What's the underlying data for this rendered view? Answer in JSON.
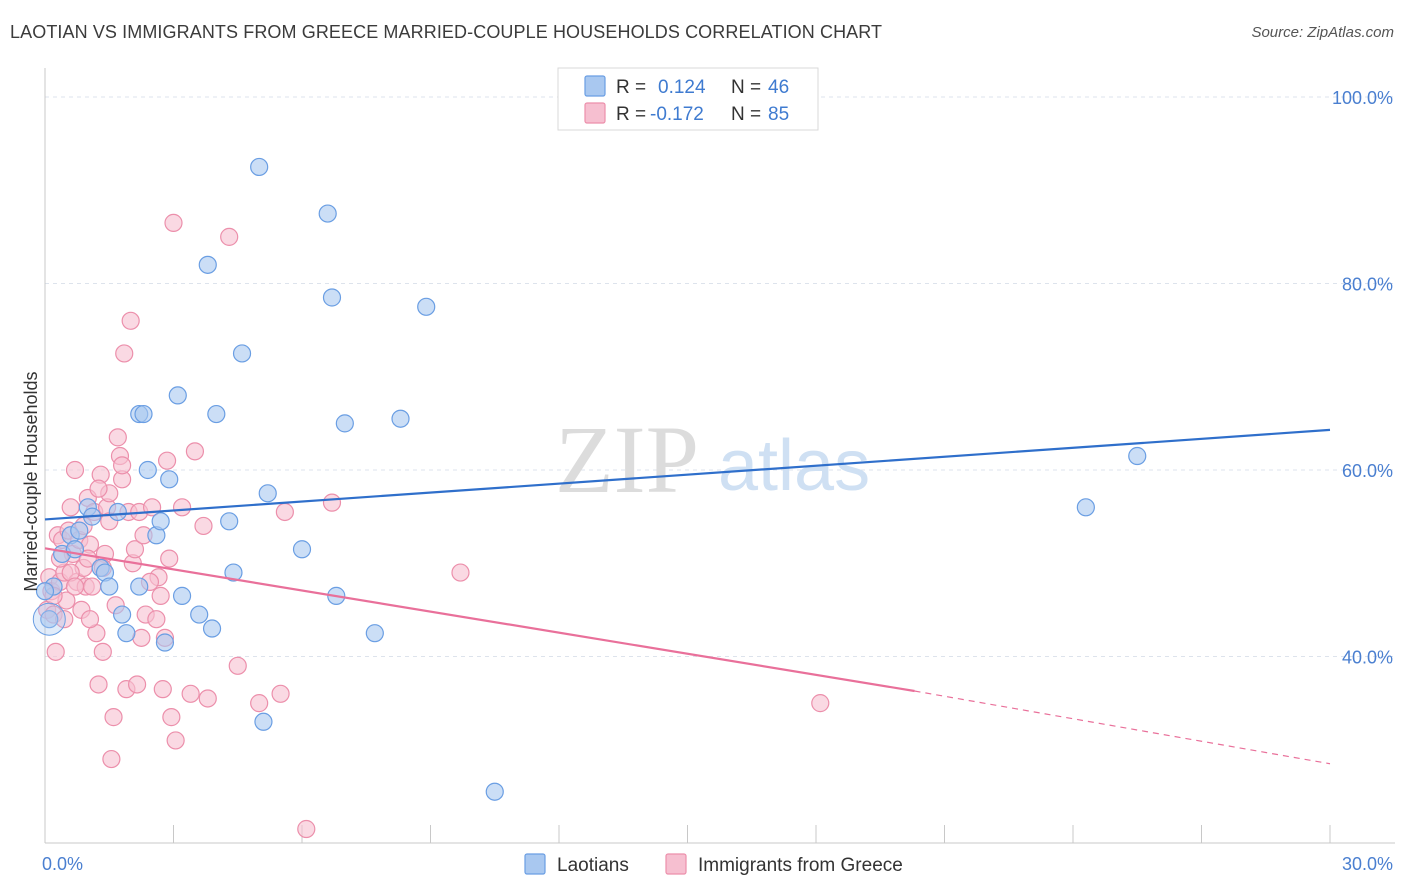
{
  "title": "LAOTIAN VS IMMIGRANTS FROM GREECE MARRIED-COUPLE HOUSEHOLDS CORRELATION CHART",
  "source": "Source: ZipAtlas.com",
  "watermark": {
    "zip": "ZIP",
    "atlas": "atlas"
  },
  "colors": {
    "blue_fill": "#a9c8f0",
    "blue_stroke": "#6a9ee3",
    "blue_line": "#2f6fcb",
    "pink_fill": "#f6bfd0",
    "pink_stroke": "#ec8fab",
    "pink_line": "#e9709a",
    "grid": "#dde3ec",
    "tick_text": "#4a7fd0"
  },
  "legend_top": {
    "r_label": "R =",
    "n_label": "N =",
    "rows": [
      {
        "r": "0.124",
        "n": "46",
        "series": "blue"
      },
      {
        "r": "-0.172",
        "n": "85",
        "series": "pink"
      }
    ]
  },
  "legend_bottom": [
    "Laotians",
    "Immigrants from Greece"
  ],
  "chart_data": {
    "type": "scatter",
    "title": "LAOTIAN VS IMMIGRANTS FROM GREECE MARRIED-COUPLE HOUSEHOLDS CORRELATION CHART",
    "xlabel": "",
    "ylabel": "Married-couple Households",
    "xlim": [
      0,
      30
    ],
    "ylim": [
      20,
      100
    ],
    "x_tick_labels": [
      "0.0%",
      "30.0%"
    ],
    "y_ticks": [
      40,
      60,
      80,
      100
    ],
    "y_tick_labels": [
      "40.0%",
      "60.0%",
      "80.0%",
      "100.0%"
    ],
    "grid": true,
    "series": [
      {
        "name": "Laotians",
        "color": "blue",
        "R": 0.124,
        "N": 46,
        "trend": {
          "x": [
            0,
            30
          ],
          "y": [
            54.7,
            64.3
          ]
        },
        "points": [
          {
            "x": 0.1,
            "y": 44
          },
          {
            "x": 0.2,
            "y": 47.5
          },
          {
            "x": 0.4,
            "y": 51
          },
          {
            "x": 0.6,
            "y": 53
          },
          {
            "x": 0.7,
            "y": 51.5
          },
          {
            "x": 0.8,
            "y": 53.5
          },
          {
            "x": 1.0,
            "y": 56
          },
          {
            "x": 1.1,
            "y": 55
          },
          {
            "x": 1.3,
            "y": 49.5
          },
          {
            "x": 1.4,
            "y": 49
          },
          {
            "x": 1.5,
            "y": 47.5
          },
          {
            "x": 1.7,
            "y": 55.5
          },
          {
            "x": 1.8,
            "y": 44.5
          },
          {
            "x": 1.9,
            "y": 42.5
          },
          {
            "x": 2.2,
            "y": 47.5
          },
          {
            "x": 2.2,
            "y": 66
          },
          {
            "x": 2.3,
            "y": 66
          },
          {
            "x": 2.4,
            "y": 60
          },
          {
            "x": 2.6,
            "y": 53
          },
          {
            "x": 2.7,
            "y": 54.5
          },
          {
            "x": 2.8,
            "y": 41.5
          },
          {
            "x": 2.9,
            "y": 59
          },
          {
            "x": 3.1,
            "y": 68
          },
          {
            "x": 3.2,
            "y": 46.5
          },
          {
            "x": 3.6,
            "y": 44.5
          },
          {
            "x": 3.8,
            "y": 82
          },
          {
            "x": 3.9,
            "y": 43
          },
          {
            "x": 4.0,
            "y": 66
          },
          {
            "x": 4.3,
            "y": 54.5
          },
          {
            "x": 4.4,
            "y": 49
          },
          {
            "x": 4.6,
            "y": 72.5
          },
          {
            "x": 5.0,
            "y": 92.5
          },
          {
            "x": 5.1,
            "y": 33
          },
          {
            "x": 5.2,
            "y": 57.5
          },
          {
            "x": 6.0,
            "y": 51.5
          },
          {
            "x": 6.6,
            "y": 87.5
          },
          {
            "x": 6.7,
            "y": 78.5
          },
          {
            "x": 6.8,
            "y": 46.5
          },
          {
            "x": 7.0,
            "y": 65
          },
          {
            "x": 7.7,
            "y": 42.5
          },
          {
            "x": 8.3,
            "y": 65.5
          },
          {
            "x": 8.9,
            "y": 77.5
          },
          {
            "x": 10.5,
            "y": 25.5
          },
          {
            "x": 24.3,
            "y": 56
          },
          {
            "x": 25.5,
            "y": 61.5
          },
          {
            "x": 0.0,
            "y": 47
          }
        ]
      },
      {
        "name": "Immigrants from Greece",
        "color": "pink",
        "R": -0.172,
        "N": 85,
        "trend": {
          "x": [
            0,
            20.3
          ],
          "y": [
            51.6,
            36.3
          ]
        },
        "trend_dashed": {
          "x": [
            20.3,
            30
          ],
          "y": [
            36.3,
            28.5
          ]
        },
        "points": [
          {
            "x": 0.05,
            "y": 45
          },
          {
            "x": 0.1,
            "y": 48.5
          },
          {
            "x": 0.15,
            "y": 47
          },
          {
            "x": 0.2,
            "y": 44.5
          },
          {
            "x": 0.25,
            "y": 40.5
          },
          {
            "x": 0.3,
            "y": 53
          },
          {
            "x": 0.35,
            "y": 48
          },
          {
            "x": 0.4,
            "y": 52.5
          },
          {
            "x": 0.45,
            "y": 49
          },
          {
            "x": 0.5,
            "y": 46
          },
          {
            "x": 0.55,
            "y": 53.5
          },
          {
            "x": 0.6,
            "y": 56
          },
          {
            "x": 0.65,
            "y": 51
          },
          {
            "x": 0.7,
            "y": 60
          },
          {
            "x": 0.75,
            "y": 48
          },
          {
            "x": 0.8,
            "y": 52.5
          },
          {
            "x": 0.9,
            "y": 49.5
          },
          {
            "x": 0.95,
            "y": 47.5
          },
          {
            "x": 1.0,
            "y": 57
          },
          {
            "x": 1.05,
            "y": 52
          },
          {
            "x": 1.1,
            "y": 47.5
          },
          {
            "x": 1.15,
            "y": 55.5
          },
          {
            "x": 1.2,
            "y": 42.5
          },
          {
            "x": 1.25,
            "y": 37
          },
          {
            "x": 1.3,
            "y": 59.5
          },
          {
            "x": 1.35,
            "y": 40.5
          },
          {
            "x": 1.4,
            "y": 51
          },
          {
            "x": 1.45,
            "y": 56
          },
          {
            "x": 1.5,
            "y": 57.5
          },
          {
            "x": 1.55,
            "y": 29
          },
          {
            "x": 1.6,
            "y": 33.5
          },
          {
            "x": 1.7,
            "y": 63.5
          },
          {
            "x": 1.75,
            "y": 61.5
          },
          {
            "x": 1.8,
            "y": 59
          },
          {
            "x": 1.85,
            "y": 72.5
          },
          {
            "x": 1.9,
            "y": 36.5
          },
          {
            "x": 1.95,
            "y": 55.5
          },
          {
            "x": 2.0,
            "y": 76
          },
          {
            "x": 2.05,
            "y": 50
          },
          {
            "x": 2.1,
            "y": 51.5
          },
          {
            "x": 2.15,
            "y": 37
          },
          {
            "x": 2.2,
            "y": 55.5
          },
          {
            "x": 2.3,
            "y": 53
          },
          {
            "x": 2.35,
            "y": 44.5
          },
          {
            "x": 2.5,
            "y": 56
          },
          {
            "x": 2.6,
            "y": 44
          },
          {
            "x": 2.65,
            "y": 48.5
          },
          {
            "x": 2.7,
            "y": 46.5
          },
          {
            "x": 2.75,
            "y": 36.5
          },
          {
            "x": 2.8,
            "y": 42
          },
          {
            "x": 2.85,
            "y": 61
          },
          {
            "x": 2.9,
            "y": 50.5
          },
          {
            "x": 2.95,
            "y": 33.5
          },
          {
            "x": 3.0,
            "y": 86.5
          },
          {
            "x": 3.05,
            "y": 31
          },
          {
            "x": 3.2,
            "y": 56
          },
          {
            "x": 3.4,
            "y": 36
          },
          {
            "x": 3.5,
            "y": 62
          },
          {
            "x": 3.7,
            "y": 54
          },
          {
            "x": 3.8,
            "y": 35.5
          },
          {
            "x": 4.3,
            "y": 85
          },
          {
            "x": 4.5,
            "y": 39
          },
          {
            "x": 5.0,
            "y": 35
          },
          {
            "x": 5.5,
            "y": 36
          },
          {
            "x": 5.6,
            "y": 55.5
          },
          {
            "x": 6.1,
            "y": 21.5
          },
          {
            "x": 6.7,
            "y": 56.5
          },
          {
            "x": 9.7,
            "y": 49
          },
          {
            "x": 18.1,
            "y": 35
          },
          {
            "x": 1.0,
            "y": 50.5
          },
          {
            "x": 0.6,
            "y": 49
          },
          {
            "x": 1.5,
            "y": 54.5
          },
          {
            "x": 0.35,
            "y": 50.5
          },
          {
            "x": 1.8,
            "y": 60.5
          },
          {
            "x": 2.45,
            "y": 48
          },
          {
            "x": 0.9,
            "y": 54
          },
          {
            "x": 1.25,
            "y": 58
          },
          {
            "x": 0.2,
            "y": 46.5
          },
          {
            "x": 0.45,
            "y": 44
          },
          {
            "x": 1.65,
            "y": 45.5
          },
          {
            "x": 2.25,
            "y": 42
          },
          {
            "x": 0.7,
            "y": 47.5
          },
          {
            "x": 1.35,
            "y": 49.5
          },
          {
            "x": 0.85,
            "y": 45
          },
          {
            "x": 1.05,
            "y": 44
          }
        ]
      }
    ]
  }
}
